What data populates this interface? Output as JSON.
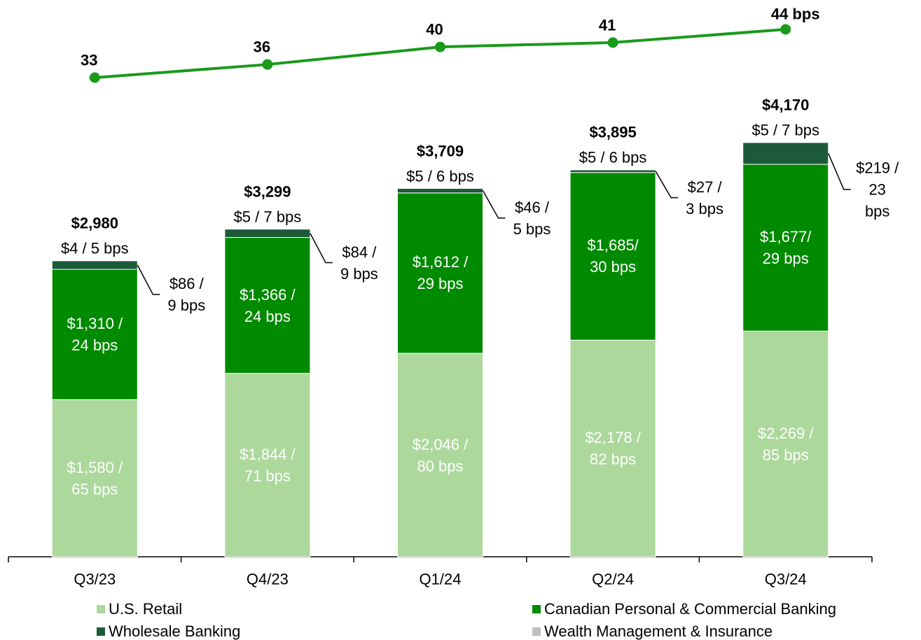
{
  "chart_data": [
    {
      "type": "bar",
      "stacked": true,
      "categories": [
        "Q3/23",
        "Q4/23",
        "Q1/24",
        "Q2/24",
        "Q3/24"
      ],
      "series": [
        {
          "name": "U.S. Retail",
          "color": "#acd89c",
          "values": [
            1580,
            1844,
            2046,
            2178,
            2269
          ],
          "value_labels": [
            "$1,580 /\n65 bps",
            "$1,844 /\n71 bps",
            "$2,046 /\n80 bps",
            "$2,178 /\n82 bps",
            "$2,269 /\n85 bps"
          ]
        },
        {
          "name": "Canadian Personal & Commercial Banking",
          "color": "#008a00",
          "values": [
            1310,
            1366,
            1612,
            1685,
            1677
          ],
          "value_labels": [
            "$1,310 /\n24 bps",
            "$1,366 /\n24 bps",
            "$1,612 /\n29 bps",
            "$1,685/\n30 bps",
            "$1,677/\n29 bps"
          ]
        },
        {
          "name": "Wholesale Banking",
          "color": "#1c5a3a",
          "values": [
            86,
            84,
            46,
            27,
            219
          ],
          "value_labels": [
            "$86 /\n9 bps",
            "$84 /\n9 bps",
            "$46 /\n5 bps",
            "$27 /\n3 bps",
            "$219 /\n23 bps"
          ]
        },
        {
          "name": "Wealth Management & Insurance",
          "color": "#bfbfbf",
          "values": [
            4,
            5,
            5,
            5,
            5
          ],
          "value_labels": [
            "$4 / 5 bps",
            "$5 / 7 bps",
            "$5 / 6 bps",
            "$5 / 6 bps",
            "$5 / 7 bps"
          ]
        }
      ],
      "totals": [
        2980,
        3299,
        3709,
        3895,
        4170
      ],
      "total_labels": [
        "$2,980",
        "$3,299",
        "$3,709",
        "$3,895",
        "$4,170"
      ]
    },
    {
      "type": "line",
      "color": "#1a9a1a",
      "values": [
        33,
        36,
        40,
        41,
        44
      ],
      "value_labels": [
        "33",
        "36",
        "40",
        "41",
        "44 bps"
      ]
    }
  ]
}
